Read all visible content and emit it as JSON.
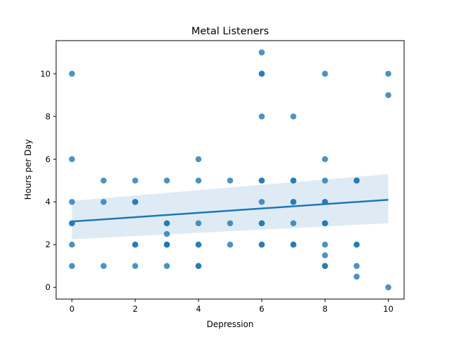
{
  "chart_data": {
    "type": "scatter",
    "title": "Metal Listeners",
    "xlabel": "Depression",
    "ylabel": "Hours per Day",
    "xlim": [
      -0.5,
      10.5
    ],
    "ylim": [
      -0.55,
      11.55
    ],
    "xticks": [
      0,
      2,
      4,
      6,
      8,
      10
    ],
    "yticks": [
      0,
      2,
      4,
      6,
      8,
      10
    ],
    "grid": false,
    "point_color": "#1f77b4",
    "points": [
      [
        0,
        10
      ],
      [
        0,
        6
      ],
      [
        0,
        4
      ],
      [
        0,
        3
      ],
      [
        0,
        3
      ],
      [
        0,
        2
      ],
      [
        0,
        1
      ],
      [
        1,
        5
      ],
      [
        1,
        4
      ],
      [
        1,
        1
      ],
      [
        2,
        5
      ],
      [
        2,
        4
      ],
      [
        2,
        4
      ],
      [
        2,
        2
      ],
      [
        2,
        2
      ],
      [
        2,
        1
      ],
      [
        3,
        5
      ],
      [
        3,
        3
      ],
      [
        3,
        3
      ],
      [
        3,
        2.5
      ],
      [
        3,
        2
      ],
      [
        3,
        2
      ],
      [
        3,
        2
      ],
      [
        3,
        1
      ],
      [
        4,
        6
      ],
      [
        4,
        5
      ],
      [
        4,
        3
      ],
      [
        4,
        2
      ],
      [
        4,
        2
      ],
      [
        4,
        1
      ],
      [
        4,
        1
      ],
      [
        5,
        5
      ],
      [
        5,
        3
      ],
      [
        5,
        2
      ],
      [
        6,
        11
      ],
      [
        6,
        10
      ],
      [
        6,
        10
      ],
      [
        6,
        8
      ],
      [
        6,
        5
      ],
      [
        6,
        5
      ],
      [
        6,
        4
      ],
      [
        6,
        3
      ],
      [
        6,
        3
      ],
      [
        6,
        2
      ],
      [
        6,
        2
      ],
      [
        7,
        8
      ],
      [
        7,
        5
      ],
      [
        7,
        5
      ],
      [
        7,
        4
      ],
      [
        7,
        4
      ],
      [
        7,
        3
      ],
      [
        7,
        2
      ],
      [
        7,
        2
      ],
      [
        8,
        10
      ],
      [
        8,
        6
      ],
      [
        8,
        5
      ],
      [
        8,
        4
      ],
      [
        8,
        4
      ],
      [
        8,
        3
      ],
      [
        8,
        3
      ],
      [
        8,
        2
      ],
      [
        8,
        1.5
      ],
      [
        8,
        1
      ],
      [
        8,
        1
      ],
      [
        9,
        5
      ],
      [
        9,
        5
      ],
      [
        9,
        2
      ],
      [
        9,
        2
      ],
      [
        9,
        1
      ],
      [
        9,
        0.5
      ],
      [
        10,
        10
      ],
      [
        10,
        9
      ],
      [
        10,
        0
      ]
    ],
    "regression": {
      "x": [
        0,
        10
      ],
      "y": [
        3.08,
        4.1
      ],
      "ci_lower": [
        2.25,
        3.0
      ],
      "ci_upper": [
        4.05,
        5.3
      ],
      "color": "#1f77b4"
    }
  }
}
